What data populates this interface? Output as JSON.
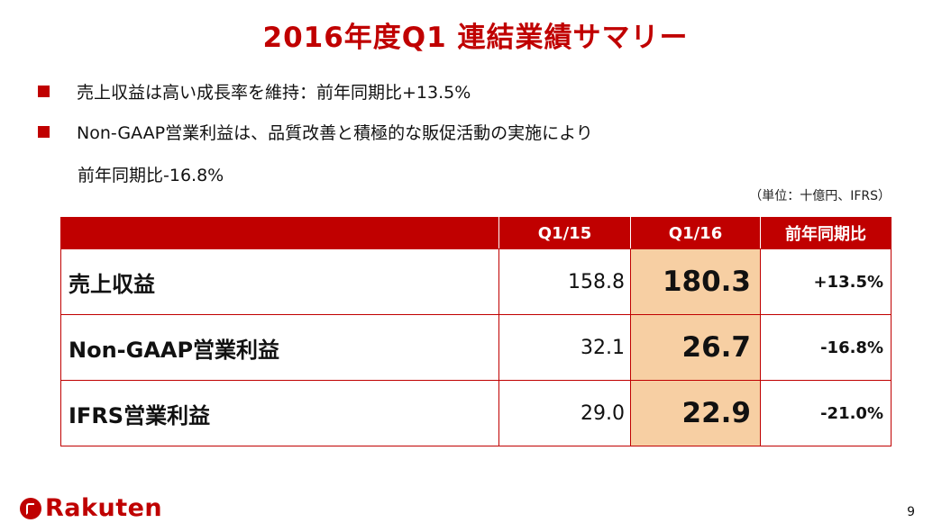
{
  "title": "2016年度Q1 連結業績サマリー",
  "bullets": [
    "売上収益は高い成長率を維持：前年同期比+13.5%",
    "Non-GAAP営業利益は、品質改善と積極的な販促活動の実施により"
  ],
  "bullet_continuation": "前年同期比-16.8%",
  "unit_note": "（単位：十億円、IFRS）",
  "table": {
    "headers": [
      "",
      "Q1/15",
      "Q1/16",
      "前年同期比"
    ],
    "rows": [
      {
        "label": "売上収益",
        "q115": "158.8",
        "q116": "180.3",
        "yoy": "+13.5%"
      },
      {
        "label": "Non-GAAP営業利益",
        "q115": "32.1",
        "q116": "26.7",
        "yoy": "-16.8%"
      },
      {
        "label": "IFRS営業利益",
        "q115": "29.0",
        "q116": "22.9",
        "yoy": "-21.0%"
      }
    ]
  },
  "logo_text": "Rakuten",
  "page_number": "9",
  "colors": {
    "accent": "#c00000",
    "highlight": "#f7cfa3"
  }
}
